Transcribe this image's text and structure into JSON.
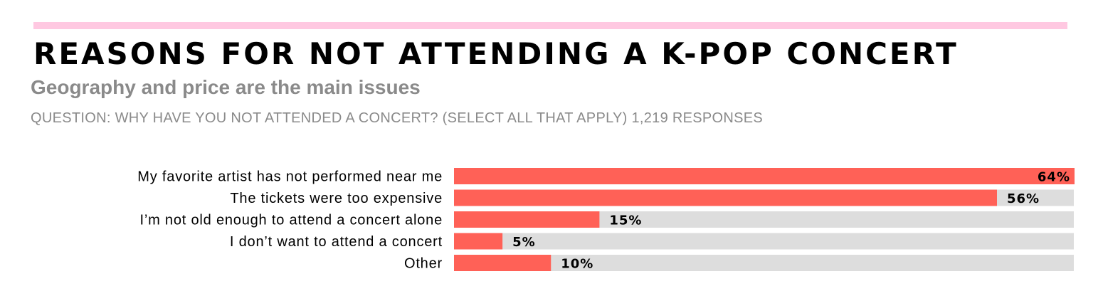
{
  "header": {
    "title": "REASONS FOR NOT ATTENDING A K-POP CONCERT",
    "subtitle": "Geography and price are the main issues",
    "question": "QUESTION: WHY HAVE YOU NOT ATTENDED A CONCERT? (SELECT ALL THAT APPLY) 1,219 RESPONSES"
  },
  "colors": {
    "accent_line": "#ffc8e1",
    "bar": "#ff6157",
    "track": "#dddddd",
    "label": "#000000"
  },
  "chart_data": {
    "type": "bar",
    "orientation": "horizontal",
    "categories": [
      "My favorite artist has not performed near me",
      "The tickets were too expensive",
      "I’m not old enough to attend a concert alone",
      "I don’t want to attend a concert",
      "Other"
    ],
    "values": [
      64,
      56,
      15,
      5,
      10
    ],
    "value_labels": [
      "64%",
      "56%",
      "15%",
      "5%",
      "10%"
    ],
    "unit": "%",
    "xlim": [
      0,
      64
    ],
    "grid": false,
    "legend": "none"
  }
}
